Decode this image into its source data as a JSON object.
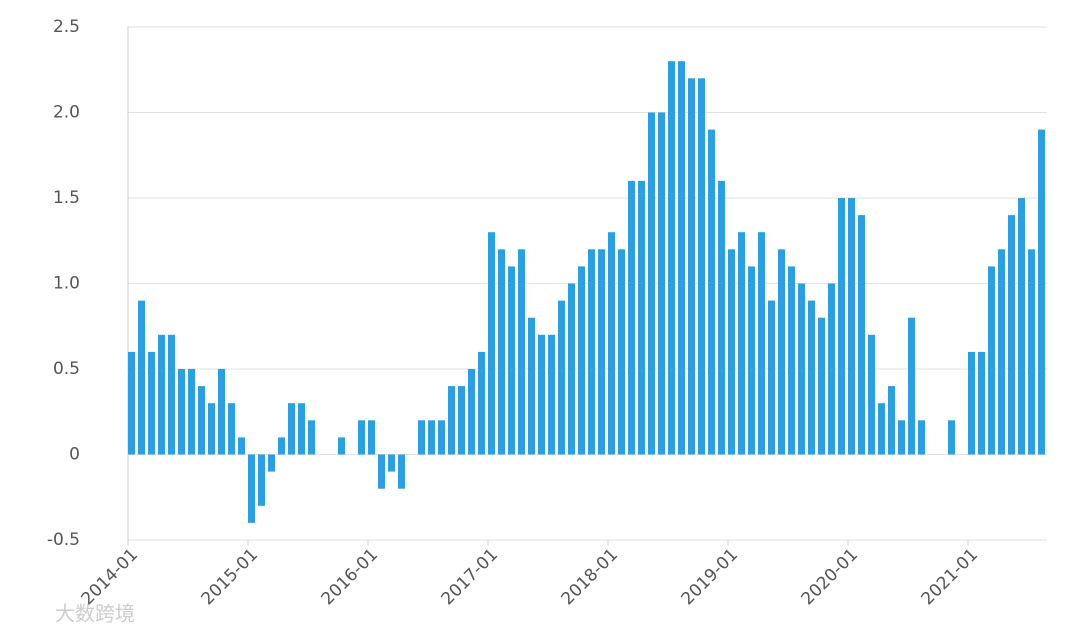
{
  "chart_data": {
    "type": "bar",
    "color": "#2b9fe0",
    "watermark": "大数跨境",
    "grid": true,
    "categories": [
      "2014-01",
      null,
      null,
      null,
      null,
      null,
      null,
      null,
      null,
      null,
      null,
      null,
      "2015-01",
      null,
      null,
      null,
      null,
      null,
      null,
      null,
      null,
      null,
      null,
      null,
      "2016-01",
      null,
      null,
      null,
      null,
      null,
      null,
      null,
      null,
      null,
      null,
      null,
      "2017-01",
      null,
      null,
      null,
      null,
      null,
      null,
      null,
      null,
      null,
      null,
      null,
      "2018-01",
      null,
      null,
      null,
      null,
      null,
      null,
      null,
      null,
      null,
      null,
      null,
      "2019-01",
      null,
      null,
      null,
      null,
      null,
      null,
      null,
      null,
      null,
      null,
      null,
      "2020-01",
      null,
      null,
      null,
      null,
      null,
      null,
      null,
      null,
      null,
      null,
      null,
      "2021-01",
      null,
      null,
      null,
      null,
      null,
      null,
      null
    ],
    "values": [
      0.6,
      0.9,
      0.6,
      0.7,
      0.7,
      0.5,
      0.5,
      0.4,
      0.3,
      0.5,
      0.3,
      0.1,
      -0.4,
      -0.3,
      -0.1,
      0.1,
      0.3,
      0.3,
      0.2,
      0,
      0,
      0.1,
      0,
      0.2,
      0.2,
      -0.2,
      -0.1,
      -0.2,
      0,
      0.2,
      0.2,
      0.2,
      0.4,
      0.4,
      0.5,
      0.6,
      1.3,
      1.2,
      1.1,
      1.2,
      0.8,
      0.7,
      0.7,
      0.9,
      1.0,
      1.1,
      1.2,
      1.2,
      1.3,
      1.2,
      1.6,
      1.6,
      2.0,
      2.0,
      2.3,
      2.3,
      2.2,
      2.2,
      1.9,
      1.6,
      1.2,
      1.3,
      1.1,
      1.3,
      0.9,
      1.2,
      1.1,
      1.0,
      0.9,
      0.8,
      1.0,
      1.5,
      1.5,
      1.4,
      0.7,
      0.3,
      0.4,
      0.2,
      0.8,
      0.2,
      0,
      0,
      0.2,
      0,
      0.6,
      0.6,
      1.1,
      1.2,
      1.4,
      1.5,
      1.2,
      1.9
    ],
    "ylim": [
      -0.5,
      2.5
    ],
    "yticks": [
      -0.5,
      0,
      0.5,
      {
        "value": 1.0,
        "label": "1.0"
      },
      1.5,
      {
        "value": 2.0,
        "label": "2.0"
      },
      2.5
    ]
  }
}
